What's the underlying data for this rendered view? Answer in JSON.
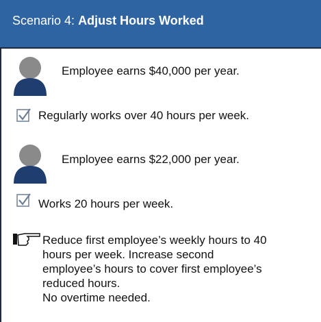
{
  "header": {
    "prefix": "Scenario 4:",
    "title": "Adjust Hours Worked"
  },
  "employees": [
    {
      "earnings": "Employee earns $40,000 per year.",
      "hours": "Regularly works over 40 hours per week."
    },
    {
      "earnings": "Employee earns $22,000 per year.",
      "hours": "Works 20 hours per week."
    }
  ],
  "note": {
    "text": "Reduce first employee’s weekly hours to 40 hours per week. Increase second employee’s hours to cover first employee’s reduced hours.",
    "conclusion": "No overtime needed."
  }
}
